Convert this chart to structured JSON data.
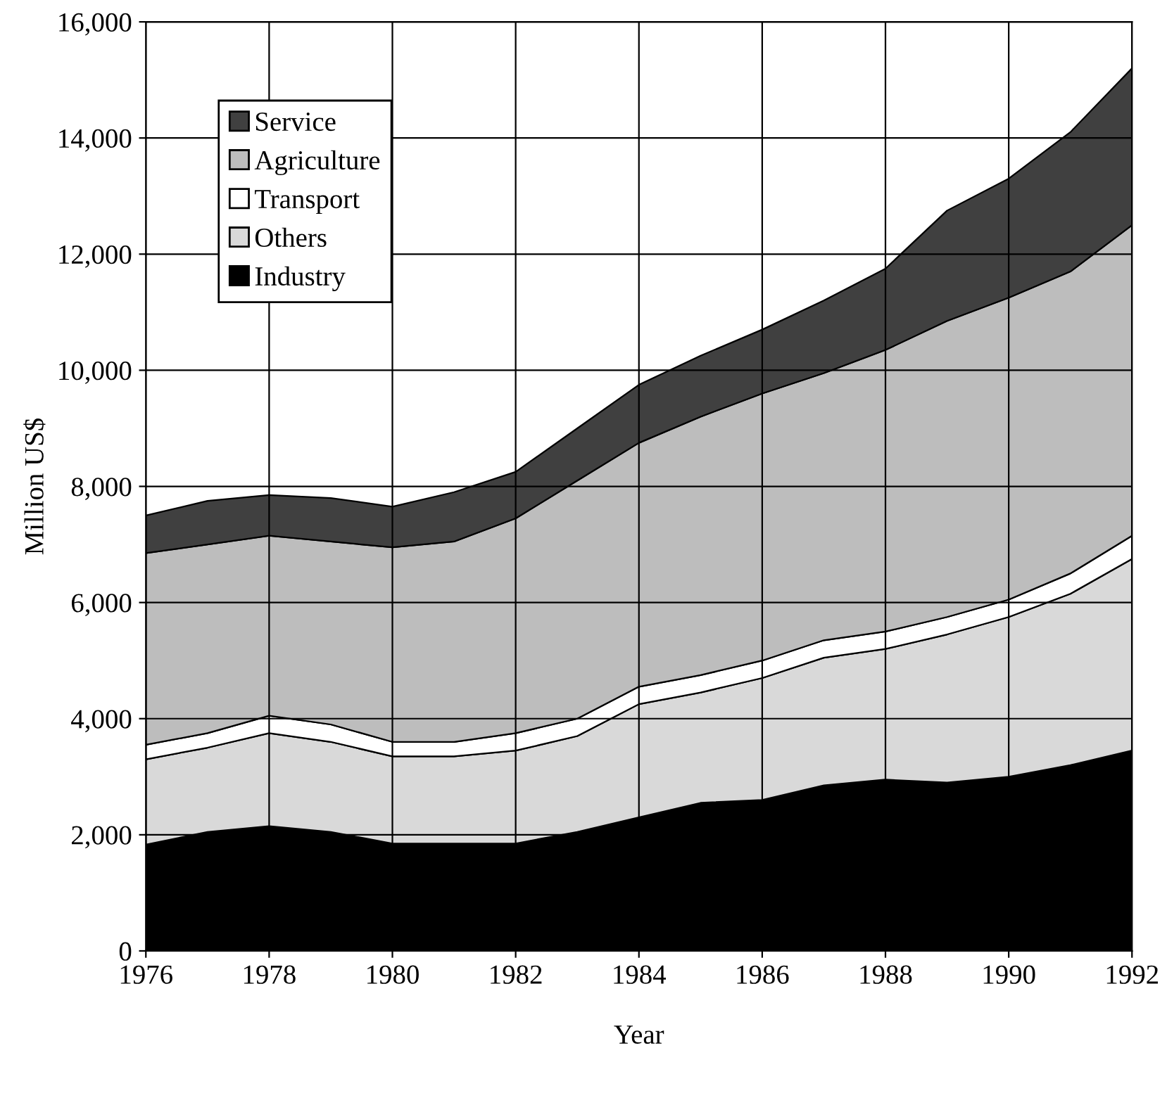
{
  "chart_data": {
    "type": "area",
    "stacked": true,
    "xlabel": "Year",
    "ylabel": "Million US$",
    "x": [
      1976,
      1977,
      1978,
      1979,
      1980,
      1981,
      1982,
      1983,
      1984,
      1985,
      1986,
      1987,
      1988,
      1989,
      1990,
      1991,
      1992
    ],
    "series": [
      {
        "name": "Industry",
        "color": "#000000",
        "values": [
          1830,
          2050,
          2150,
          2050,
          1850,
          1850,
          1850,
          2050,
          2300,
          2550,
          2600,
          2850,
          2950,
          2900,
          3000,
          3200,
          3450
        ]
      },
      {
        "name": "Others",
        "color": "#d9d9d9",
        "values": [
          1470,
          1450,
          1600,
          1550,
          1500,
          1500,
          1600,
          1650,
          1950,
          1900,
          2100,
          2200,
          2250,
          2550,
          2750,
          2950,
          3300
        ]
      },
      {
        "name": "Transport",
        "color": "#ffffff",
        "values": [
          250,
          250,
          300,
          300,
          250,
          250,
          300,
          300,
          300,
          300,
          300,
          300,
          300,
          300,
          300,
          350,
          400
        ]
      },
      {
        "name": "Agriculture",
        "color": "#bdbdbd",
        "values": [
          3300,
          3250,
          3100,
          3150,
          3350,
          3450,
          3700,
          4100,
          4200,
          4450,
          4600,
          4600,
          4850,
          5100,
          5200,
          5200,
          5350
        ]
      },
      {
        "name": "Service",
        "color": "#404040",
        "values": [
          650,
          750,
          700,
          750,
          700,
          850,
          800,
          900,
          1000,
          1050,
          1100,
          1250,
          1400,
          1900,
          2050,
          2400,
          2700
        ]
      }
    ],
    "xlim": [
      1976,
      1992
    ],
    "xticks": [
      1976,
      1978,
      1980,
      1982,
      1984,
      1986,
      1988,
      1990,
      1992
    ],
    "ylim": [
      0,
      16000
    ],
    "yticks": [
      0,
      {
        "value": 2000,
        "label": "2,000"
      },
      {
        "value": 4000,
        "label": "4,000"
      },
      {
        "value": 6000,
        "label": "6,000"
      },
      {
        "value": 8000,
        "label": "8,000"
      },
      {
        "value": 10000,
        "label": "10,000"
      },
      {
        "value": 12000,
        "label": "12,000"
      },
      {
        "value": 14000,
        "label": "14,000"
      },
      {
        "value": 16000,
        "label": "16,000"
      }
    ],
    "grid": true,
    "legend": "top left"
  }
}
